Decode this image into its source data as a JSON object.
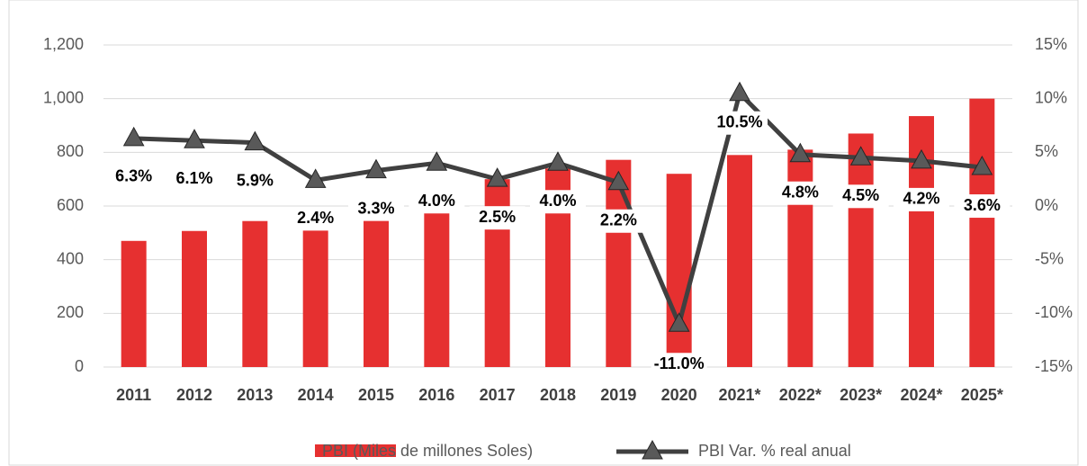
{
  "chart_data": {
    "type": "bar-line",
    "categories": [
      "2011",
      "2012",
      "2013",
      "2014",
      "2015",
      "2016",
      "2017",
      "2018",
      "2019",
      "2020",
      "2021*",
      "2022*",
      "2023*",
      "2024*",
      "2025*"
    ],
    "series": [
      {
        "name": "PBI (Miles de millones Soles)",
        "type": "bar",
        "color": "#e63030",
        "values": [
          470,
          507,
          544,
          575,
          610,
          655,
          700,
          740,
          772,
          720,
          790,
          810,
          870,
          935,
          1000
        ]
      },
      {
        "name": "PBI Var. %  real anual",
        "type": "line",
        "axis": "y2",
        "color": "#404040",
        "marker_color": "#595959",
        "values": [
          6.3,
          6.1,
          5.9,
          2.4,
          3.3,
          4.0,
          2.5,
          4.0,
          2.2,
          -11.0,
          10.5,
          4.8,
          4.5,
          4.2,
          3.6
        ],
        "value_labels": [
          "6.3%",
          "6.1%",
          "5.9%",
          "2.4%",
          "3.3%",
          "4.0%",
          "2.5%",
          "4.0%",
          "2.2%",
          "-11.0%",
          "10.5%",
          "4.8%",
          "4.5%",
          "4.2%",
          "3.6%"
        ]
      }
    ],
    "ylim": [
      0,
      1200
    ],
    "yticks": [
      0,
      200,
      400,
      600,
      800,
      {
        "value": 1000,
        "label": "1,000"
      },
      {
        "value": 1200,
        "label": "1,200"
      }
    ],
    "y2lim": [
      -15,
      15
    ],
    "y2ticks": [
      {
        "value": -15,
        "label": "-15%"
      },
      {
        "value": -10,
        "label": "-10%"
      },
      {
        "value": -5,
        "label": "-5%"
      },
      {
        "value": 0,
        "label": "0%"
      },
      {
        "value": 5,
        "label": "5%"
      },
      {
        "value": 10,
        "label": "10%"
      },
      {
        "value": 15,
        "label": "15%"
      }
    ],
    "grid": true,
    "legend": "bottom"
  }
}
